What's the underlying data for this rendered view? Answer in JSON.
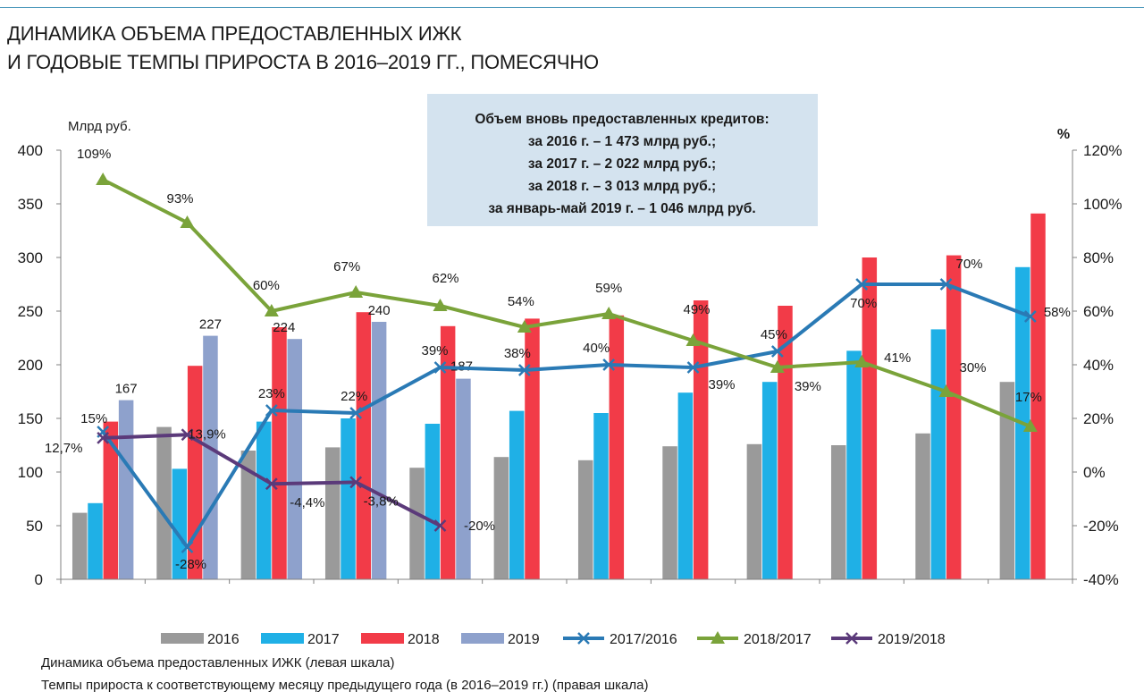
{
  "header": {
    "title_line1": "ДИНАМИКА ОБЪЕМА ПРЕДОСТАВЛЕННЫХ ИЖК",
    "title_line2": "И ГОДОВЫЕ ТЕМПЫ ПРИРОСТА В 2016–2019 ГГ., ПОМЕСЯЧНО"
  },
  "infobox": {
    "lines": [
      "Объем вновь предоставленных кредитов:",
      "за 2016 г. – 1 473 млрд руб.;",
      "за 2017 г. – 2 022 млрд руб.;",
      "за 2018 г. – 3 013 млрд руб.;",
      "за январь-май 2019 г. – 1 046 млрд руб."
    ],
    "bg_color": "#d4e3ef"
  },
  "footnotes": [
    "Динамика объема предоставленных ИЖК (левая шкала)",
    "Темпы прироста к соответствующему месяцу предыдущего года (в 2016–2019 гг.) (правая шкала)"
  ],
  "chart_data": {
    "type": "bar",
    "months": 12,
    "left_axis": {
      "label": "Млрд руб.",
      "min": 0,
      "max": 400,
      "ticks": [
        0,
        50,
        100,
        150,
        200,
        250,
        300,
        350,
        400
      ]
    },
    "right_axis": {
      "label": "%",
      "min": -40,
      "max": 120,
      "ticks": [
        "-40%",
        "-20%",
        "0%",
        "20%",
        "40%",
        "60%",
        "80%",
        "100%",
        "120%"
      ]
    },
    "bar_series": [
      {
        "name": "2016",
        "color": "#9a9a9a",
        "values": [
          62,
          142,
          120,
          123,
          104,
          114,
          111,
          124,
          126,
          125,
          136,
          184
        ]
      },
      {
        "name": "2017",
        "color": "#1fb0e6",
        "values": [
          71,
          103,
          147,
          150,
          145,
          157,
          155,
          174,
          184,
          213,
          233,
          291
        ]
      },
      {
        "name": "2018",
        "color": "#f23b48",
        "values": [
          147,
          199,
          235,
          249,
          236,
          243,
          246,
          260,
          255,
          300,
          302,
          341
        ]
      },
      {
        "name": "2019",
        "color": "#8ea1cc",
        "values": [
          167,
          227,
          224,
          240,
          187
        ]
      }
    ],
    "bar_value_labels": {
      "2019": [
        "167",
        "227",
        "224",
        "240",
        "187"
      ]
    },
    "line_series": [
      {
        "name": "2017/2016",
        "color": "#2a7ab5",
        "marker": "x",
        "values": [
          15,
          -28,
          23,
          22,
          39,
          38,
          40,
          39,
          45,
          70,
          70,
          58
        ],
        "labels": [
          "15%",
          "-28%",
          "23%",
          "22%",
          "39%",
          "38%",
          "40%",
          "39%",
          "45%",
          "70%",
          "70%",
          "58%"
        ]
      },
      {
        "name": "2018/2017",
        "color": "#7aa33a",
        "marker": "triangle",
        "values": [
          109,
          93,
          60,
          67,
          62,
          54,
          59,
          49,
          39,
          41,
          30,
          17
        ],
        "labels": [
          "109%",
          "93%",
          "60%",
          "67%",
          "62%",
          "54%",
          "59%",
          "49%",
          "39%",
          "41%",
          "30%",
          "17%"
        ]
      },
      {
        "name": "2019/2018",
        "color": "#5b3a7a",
        "marker": "x",
        "values": [
          12.7,
          13.9,
          -4.4,
          -3.8,
          -20
        ],
        "labels": [
          "12,7%",
          "13,9%",
          "-4,4%",
          "-3,8%",
          "-20%"
        ]
      }
    ],
    "legend_position": "bottom",
    "grid": false
  }
}
